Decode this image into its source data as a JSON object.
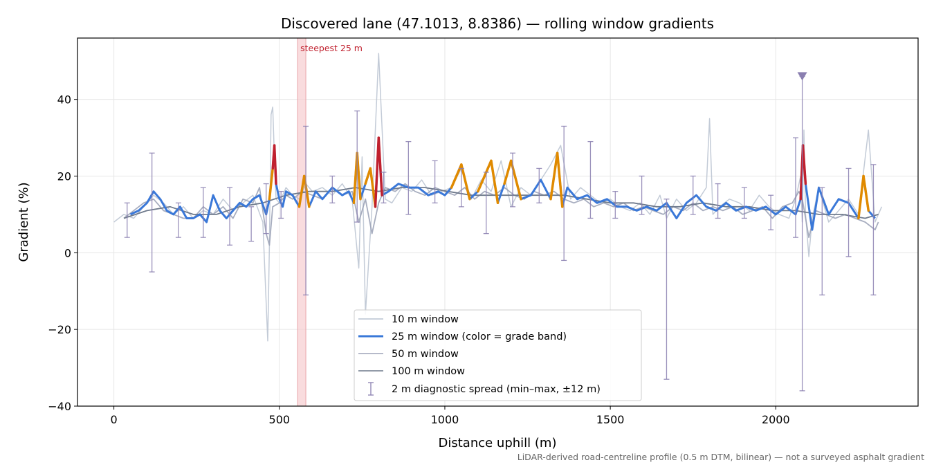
{
  "chart_data": {
    "type": "line",
    "title": "Discovered lane (47.1013, 8.8386) — rolling window gradients",
    "xlabel": "Distance uphill (m)",
    "ylabel": "Gradient (%)",
    "xlim": [
      -110,
      2430
    ],
    "ylim": [
      -40,
      56
    ],
    "x_ticks": [
      0,
      500,
      1000,
      1500,
      2000
    ],
    "y_ticks": [
      -40,
      -20,
      0,
      20,
      40
    ],
    "y_tick_labels": [
      "−40",
      "−20",
      "0",
      "20",
      "40"
    ],
    "grid": true,
    "legend_position": "lower center",
    "footnote": "LiDAR-derived road-centreline profile (0.5 m DTM, bilinear) — not a surveyed asphalt gradient",
    "steepest": {
      "label": "steepest 25 m",
      "x_start": 555,
      "x_end": 580
    },
    "max_marker": {
      "x": 2080,
      "y": 46
    },
    "colors": {
      "w10": "#b8c2d0",
      "w25": "#3a78d8",
      "w50": "#9da4b8",
      "w100": "#6f7a8c",
      "band_orange": "#e08a00",
      "band_red": "#c0202e",
      "diag": "#8a7fb0",
      "steep_fill": "#f6cdd0"
    },
    "series": [
      {
        "name": "10 m window",
        "key": "w10",
        "x": [
          0,
          30,
          60,
          90,
          120,
          150,
          180,
          210,
          240,
          270,
          300,
          330,
          360,
          390,
          420,
          450,
          465,
          470,
          475,
          480,
          485,
          490,
          500,
          520,
          540,
          560,
          580,
          600,
          630,
          660,
          690,
          720,
          740,
          750,
          760,
          780,
          800,
          820,
          840,
          870,
          900,
          930,
          960,
          990,
          1020,
          1050,
          1080,
          1110,
          1140,
          1170,
          1200,
          1230,
          1260,
          1290,
          1320,
          1350,
          1380,
          1410,
          1440,
          1470,
          1500,
          1530,
          1560,
          1590,
          1620,
          1650,
          1670,
          1700,
          1730,
          1760,
          1790,
          1800,
          1810,
          1830,
          1860,
          1890,
          1920,
          1950,
          1980,
          2010,
          2040,
          2060,
          2075,
          2080,
          2085,
          2090,
          2100,
          2110,
          2130,
          2160,
          2190,
          2220,
          2250,
          2280,
          2300,
          2320
        ],
        "y": [
          8,
          10,
          9,
          12,
          15,
          13,
          10,
          12,
          9,
          11,
          10,
          14,
          11,
          13,
          15,
          8,
          -23,
          2,
          36,
          38,
          25,
          14,
          13,
          17,
          15,
          14,
          18,
          16,
          17,
          15,
          18,
          14,
          -4,
          25,
          -16,
          12,
          52,
          14,
          13,
          17,
          16,
          19,
          15,
          16,
          17,
          22,
          14,
          19,
          16,
          24,
          12,
          17,
          15,
          19,
          23,
          28,
          14,
          17,
          15,
          13,
          14,
          12,
          11,
          13,
          10,
          15,
          9,
          14,
          11,
          13,
          17,
          35,
          10,
          12,
          14,
          13,
          11,
          15,
          12,
          10,
          9,
          14,
          20,
          8,
          32,
          10,
          -1,
          9,
          17,
          8,
          11,
          14,
          10,
          32,
          8,
          12
        ]
      },
      {
        "name": "25 m window (color = grade band)",
        "key": "w25",
        "x": [
          50,
          75,
          100,
          120,
          140,
          160,
          180,
          200,
          220,
          240,
          260,
          280,
          300,
          320,
          340,
          360,
          380,
          400,
          420,
          440,
          460,
          470,
          480,
          485,
          490,
          500,
          510,
          520,
          540,
          560,
          575,
          590,
          610,
          630,
          660,
          690,
          710,
          725,
          735,
          745,
          760,
          775,
          790,
          800,
          810,
          830,
          860,
          890,
          920,
          950,
          980,
          1000,
          1020,
          1050,
          1075,
          1100,
          1120,
          1140,
          1160,
          1180,
          1200,
          1230,
          1260,
          1290,
          1320,
          1340,
          1355,
          1370,
          1400,
          1430,
          1460,
          1490,
          1520,
          1550,
          1580,
          1610,
          1640,
          1670,
          1700,
          1730,
          1760,
          1790,
          1820,
          1850,
          1880,
          1910,
          1940,
          1970,
          2000,
          2030,
          2060,
          2075,
          2082,
          2090,
          2100,
          2110,
          2130,
          2160,
          2190,
          2220,
          2250,
          2265,
          2280,
          2300
        ],
        "y": [
          10,
          11,
          13,
          16,
          14,
          11,
          10,
          12,
          9,
          9,
          10,
          8,
          15,
          11,
          9,
          11,
          13,
          12,
          14,
          15,
          10,
          14,
          22,
          28,
          18,
          14,
          12,
          16,
          15,
          12,
          20,
          12,
          16,
          14,
          17,
          15,
          16,
          13,
          26,
          14,
          18,
          22,
          12,
          30,
          15,
          16,
          18,
          17,
          17,
          15,
          16,
          15,
          17,
          23,
          14,
          16,
          20,
          24,
          13,
          18,
          24,
          14,
          15,
          19,
          14,
          26,
          12,
          17,
          14,
          15,
          13,
          14,
          12,
          12,
          11,
          12,
          11,
          13,
          9,
          13,
          15,
          12,
          11,
          13,
          11,
          12,
          11,
          12,
          10,
          12,
          10,
          14,
          28,
          18,
          12,
          6,
          17,
          10,
          14,
          13,
          9,
          20,
          11,
          9
        ]
      },
      {
        "name": "50 m window",
        "key": "w50",
        "x": [
          30,
          60,
          90,
          120,
          150,
          180,
          210,
          240,
          270,
          300,
          330,
          360,
          390,
          420,
          440,
          460,
          470,
          480,
          500,
          520,
          540,
          570,
          600,
          630,
          660,
          690,
          720,
          740,
          760,
          780,
          800,
          820,
          850,
          880,
          910,
          940,
          970,
          1000,
          1030,
          1060,
          1090,
          1120,
          1150,
          1180,
          1210,
          1240,
          1270,
          1300,
          1330,
          1360,
          1390,
          1420,
          1450,
          1480,
          1510,
          1540,
          1570,
          1600,
          1630,
          1660,
          1690,
          1720,
          1750,
          1780,
          1810,
          1840,
          1870,
          1900,
          1930,
          1960,
          1990,
          2020,
          2050,
          2070,
          2080,
          2090,
          2100,
          2120,
          2150,
          2180,
          2210,
          2240,
          2270,
          2300,
          2310
        ],
        "y": [
          9,
          11,
          13,
          14,
          11,
          10,
          9,
          9,
          12,
          10,
          12,
          9,
          14,
          13,
          17,
          5,
          2,
          12,
          13,
          15,
          14,
          16,
          15,
          14,
          17,
          15,
          16,
          8,
          14,
          5,
          13,
          17,
          16,
          18,
          16,
          15,
          17,
          16,
          15,
          17,
          14,
          16,
          15,
          17,
          15,
          14,
          16,
          15,
          16,
          14,
          13,
          14,
          12,
          13,
          12,
          13,
          11,
          12,
          11,
          10,
          12,
          11,
          13,
          11,
          12,
          11,
          12,
          10,
          11,
          12,
          9,
          12,
          13,
          16,
          14,
          9,
          4,
          11,
          10,
          9,
          10,
          9,
          8,
          6,
          8
        ]
      },
      {
        "name": "100 m window",
        "key": "w100",
        "x": [
          30,
          100,
          170,
          240,
          310,
          380,
          450,
          520,
          590,
          660,
          730,
          800,
          870,
          940,
          1010,
          1080,
          1150,
          1220,
          1290,
          1360,
          1430,
          1500,
          1570,
          1640,
          1710,
          1780,
          1850,
          1920,
          1990,
          2060,
          2130,
          2200,
          2270,
          2310
        ],
        "y": [
          9,
          11,
          12,
          10,
          10,
          12,
          13,
          15,
          16,
          16,
          17,
          16,
          17,
          17,
          16,
          15,
          15,
          15,
          15,
          15,
          14,
          13,
          13,
          12,
          12,
          13,
          12,
          12,
          11,
          11,
          10,
          10,
          9,
          10
        ]
      }
    ],
    "diagnostic_spread": {
      "name": "2 m diagnostic spread (min–max, ±12 m)",
      "points": [
        {
          "x": 40,
          "min": 4,
          "max": 13
        },
        {
          "x": 115,
          "min": -5,
          "max": 26
        },
        {
          "x": 195,
          "min": 4,
          "max": 13
        },
        {
          "x": 270,
          "min": 4,
          "max": 17
        },
        {
          "x": 350,
          "min": 2,
          "max": 17
        },
        {
          "x": 415,
          "min": 3,
          "max": 12
        },
        {
          "x": 460,
          "min": 5,
          "max": 18
        },
        {
          "x": 505,
          "min": 9,
          "max": 16
        },
        {
          "x": 580,
          "min": -11,
          "max": 33
        },
        {
          "x": 660,
          "min": 13,
          "max": 20
        },
        {
          "x": 735,
          "min": 8,
          "max": 37
        },
        {
          "x": 815,
          "min": 13,
          "max": 21
        },
        {
          "x": 890,
          "min": 10,
          "max": 29
        },
        {
          "x": 970,
          "min": 13,
          "max": 24
        },
        {
          "x": 1050,
          "min": 12,
          "max": 22
        },
        {
          "x": 1125,
          "min": 5,
          "max": 21
        },
        {
          "x": 1205,
          "min": 12,
          "max": 26
        },
        {
          "x": 1285,
          "min": 13,
          "max": 22
        },
        {
          "x": 1360,
          "min": -2,
          "max": 33
        },
        {
          "x": 1440,
          "min": 9,
          "max": 29
        },
        {
          "x": 1515,
          "min": 9,
          "max": 16
        },
        {
          "x": 1595,
          "min": 10,
          "max": 20
        },
        {
          "x": 1670,
          "min": -33,
          "max": 14
        },
        {
          "x": 1750,
          "min": 10,
          "max": 20
        },
        {
          "x": 1825,
          "min": 9,
          "max": 18
        },
        {
          "x": 1905,
          "min": 9,
          "max": 17
        },
        {
          "x": 1985,
          "min": 6,
          "max": 15
        },
        {
          "x": 2060,
          "min": 4,
          "max": 30
        },
        {
          "x": 2080,
          "min": -36,
          "max": 46
        },
        {
          "x": 2140,
          "min": -11,
          "max": 17
        },
        {
          "x": 2220,
          "min": -1,
          "max": 22
        },
        {
          "x": 2295,
          "min": -11,
          "max": 23
        }
      ]
    }
  }
}
